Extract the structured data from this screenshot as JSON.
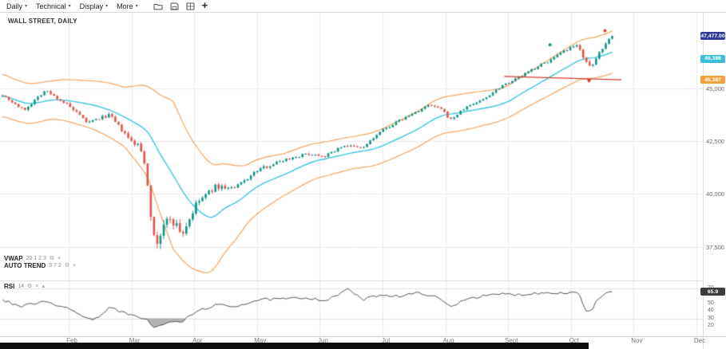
{
  "toolbar": {
    "menus": [
      {
        "label": "Daily"
      },
      {
        "label": "Technical"
      },
      {
        "label": "Display"
      },
      {
        "label": "More"
      }
    ],
    "icons": [
      {
        "name": "open-folder-icon"
      },
      {
        "name": "save-icon"
      },
      {
        "name": "layout-grid-icon"
      },
      {
        "name": "add-icon",
        "glyph": "+"
      }
    ]
  },
  "chart": {
    "title": "WALL STREET, DAILY",
    "legend": {
      "vwap": {
        "name": "VWAP",
        "params": "20 1 2 3"
      },
      "auto_trend": {
        "name": "AUTO TREND",
        "params": "3 7 2"
      },
      "rsi": {
        "name": "RSI",
        "params": "14"
      }
    },
    "price_axis": {
      "labels": [
        45000,
        42500,
        40000,
        37500
      ],
      "badges": [
        {
          "text": "47,477.00",
          "value": 47477,
          "color": "#2d3a96"
        },
        {
          "text": "46,386",
          "value": 46386,
          "color": "#3bbfd8"
        },
        {
          "text": "45,387",
          "value": 45387,
          "color": "#f2a23c"
        }
      ]
    },
    "rsi_axis": {
      "labels": [
        70,
        50,
        40,
        30,
        20
      ],
      "badge": {
        "text": "65.9",
        "value": 65.9,
        "color": "#3c3c3c"
      }
    }
  },
  "chart_data": {
    "type": "candlestick",
    "title": "WALL STREET, DAILY",
    "timeframe": "Daily",
    "x_months": [
      "Feb",
      "Mar",
      "Apr",
      "May",
      "Jun",
      "Jul",
      "Aug",
      "Sept",
      "Oct",
      "Nov",
      "Dec"
    ],
    "ylim": [
      35900,
      48610
    ],
    "price_gridlines": [
      45000,
      42500,
      40000,
      37500
    ],
    "last_close": 47477,
    "ma20_last": 46386,
    "lower_band_last": 45387,
    "rsi_last": 65.9,
    "num_candles": 190,
    "seed": 7,
    "close_keypoints": [
      [
        0.0,
        44700
      ],
      [
        0.035,
        43950
      ],
      [
        0.07,
        44900
      ],
      [
        0.105,
        44250
      ],
      [
        0.14,
        43350
      ],
      [
        0.175,
        43750
      ],
      [
        0.21,
        42500
      ],
      [
        0.225,
        42250
      ],
      [
        0.235,
        41300
      ],
      [
        0.25,
        37400
      ],
      [
        0.262,
        38300
      ],
      [
        0.275,
        38900
      ],
      [
        0.295,
        38100
      ],
      [
        0.32,
        39600
      ],
      [
        0.35,
        40350
      ],
      [
        0.38,
        40250
      ],
      [
        0.42,
        41150
      ],
      [
        0.46,
        41600
      ],
      [
        0.5,
        41900
      ],
      [
        0.53,
        41800
      ],
      [
        0.56,
        42300
      ],
      [
        0.59,
        42150
      ],
      [
        0.62,
        42950
      ],
      [
        0.65,
        43450
      ],
      [
        0.68,
        43900
      ],
      [
        0.7,
        44200
      ],
      [
        0.72,
        44000
      ],
      [
        0.735,
        43500
      ],
      [
        0.76,
        44100
      ],
      [
        0.79,
        44500
      ],
      [
        0.82,
        45150
      ],
      [
        0.85,
        45550
      ],
      [
        0.875,
        46000
      ],
      [
        0.9,
        46350
      ],
      [
        0.925,
        46800
      ],
      [
        0.945,
        47050
      ],
      [
        0.955,
        46300
      ],
      [
        0.965,
        45900
      ],
      [
        0.975,
        46500
      ],
      [
        0.99,
        47200
      ],
      [
        1.0,
        47450
      ]
    ],
    "volatility_keypoints": [
      [
        0,
        130
      ],
      [
        0.15,
        150
      ],
      [
        0.21,
        200
      ],
      [
        0.24,
        350
      ],
      [
        0.25,
        750
      ],
      [
        0.28,
        500
      ],
      [
        0.32,
        300
      ],
      [
        0.4,
        170
      ],
      [
        0.5,
        130
      ],
      [
        0.6,
        120
      ],
      [
        0.7,
        115
      ],
      [
        0.8,
        115
      ],
      [
        0.9,
        125
      ],
      [
        0.945,
        160
      ],
      [
        0.96,
        220
      ],
      [
        1.0,
        150
      ]
    ],
    "band_halfwidth_keypoints": [
      [
        0,
        1000
      ],
      [
        0.08,
        900
      ],
      [
        0.14,
        1100
      ],
      [
        0.2,
        1400
      ],
      [
        0.24,
        2200
      ],
      [
        0.28,
        3500
      ],
      [
        0.34,
        2600
      ],
      [
        0.4,
        1400
      ],
      [
        0.46,
        1000
      ],
      [
        0.52,
        820
      ],
      [
        0.58,
        760
      ],
      [
        0.64,
        820
      ],
      [
        0.7,
        860
      ],
      [
        0.76,
        860
      ],
      [
        0.82,
        760
      ],
      [
        0.88,
        820
      ],
      [
        0.94,
        920
      ],
      [
        1.0,
        1000
      ]
    ],
    "rsi_keypoints": [
      [
        0,
        55
      ],
      [
        0.03,
        46
      ],
      [
        0.07,
        54
      ],
      [
        0.11,
        42
      ],
      [
        0.15,
        27
      ],
      [
        0.175,
        45
      ],
      [
        0.21,
        34
      ],
      [
        0.235,
        30
      ],
      [
        0.25,
        17
      ],
      [
        0.27,
        24
      ],
      [
        0.295,
        26
      ],
      [
        0.32,
        40
      ],
      [
        0.35,
        48
      ],
      [
        0.38,
        46
      ],
      [
        0.42,
        55
      ],
      [
        0.46,
        56
      ],
      [
        0.5,
        58
      ],
      [
        0.53,
        54
      ],
      [
        0.555,
        63
      ],
      [
        0.565,
        72
      ],
      [
        0.575,
        64
      ],
      [
        0.59,
        55
      ],
      [
        0.62,
        62
      ],
      [
        0.65,
        60
      ],
      [
        0.68,
        64
      ],
      [
        0.7,
        62
      ],
      [
        0.72,
        55
      ],
      [
        0.735,
        45
      ],
      [
        0.76,
        57
      ],
      [
        0.79,
        60
      ],
      [
        0.82,
        63
      ],
      [
        0.85,
        62
      ],
      [
        0.875,
        64
      ],
      [
        0.9,
        65
      ],
      [
        0.925,
        64
      ],
      [
        0.945,
        66
      ],
      [
        0.955,
        42
      ],
      [
        0.965,
        38
      ],
      [
        0.975,
        55
      ],
      [
        0.99,
        63
      ],
      [
        1.0,
        65.9
      ]
    ],
    "rsi_range": [
      6,
      80
    ],
    "rsi_gridlines": [
      70,
      30
    ],
    "trend_line": {
      "t0": 0.823,
      "p0": 45560,
      "t1": 1.015,
      "p1": 45400
    },
    "markers": [
      {
        "t": 0.898,
        "price": 47050,
        "shape": "dot",
        "color": "#18a05c"
      },
      {
        "t": 0.962,
        "price": 45320,
        "shape": "triangle-down",
        "color": "#d43d30"
      },
      {
        "t": 0.988,
        "price": 47720,
        "shape": "dot",
        "color": "#d43d30"
      }
    ],
    "layout": {
      "first_candle_x": 3,
      "candle_step": 4.04,
      "candle_width": 2.6,
      "month_first_x": 86,
      "month_spacing": 78.6
    },
    "colors": {
      "up": "#10948a",
      "down": "#e0544a",
      "ma": "#3ec6dd",
      "band": "#f5a55f",
      "rsi": "#555555",
      "grid": "#ececec",
      "trend": "#d43d30",
      "rsi_fill": "#8a8a8a"
    }
  }
}
